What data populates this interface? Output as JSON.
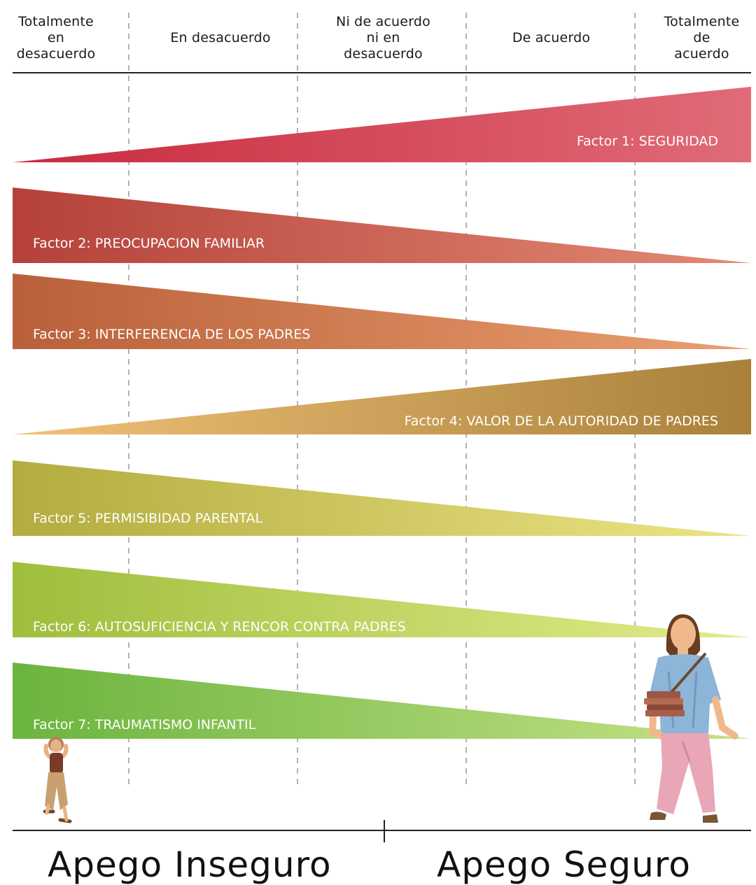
{
  "scale": {
    "headers": [
      [
        "Totalmente",
        "en",
        "desacuerdo"
      ],
      [
        "En desacuerdo"
      ],
      [
        "Ni de acuerdo",
        "ni en",
        "desacuerdo"
      ],
      [
        "De acuerdo"
      ],
      [
        "Totalmente",
        "de",
        "acuerdo"
      ]
    ]
  },
  "factors": [
    {
      "label": "Factor 1: SEGURIDAD",
      "direction": "rising",
      "color_start": "#c92b3e",
      "color_end": "#e06b78"
    },
    {
      "label": "Factor 2: PREOCUPACION FAMILIAR",
      "direction": "falling",
      "color_start": "#b5413a",
      "color_end": "#e28a74"
    },
    {
      "label": "Factor 3: INTERFERENCIA  DE LOS PADRES",
      "direction": "falling",
      "color_start": "#b9603a",
      "color_end": "#eaa070"
    },
    {
      "label": "Factor 4: VALOR DE LA AUTORIDAD DE PADRES",
      "direction": "rising",
      "color_start": "#f0c178",
      "color_end": "#a9813a"
    },
    {
      "label": "Factor 5: PERMISIBIDAD PARENTAL",
      "direction": "falling",
      "color_start": "#b3ac3f",
      "color_end": "#ece586"
    },
    {
      "label": "Factor 6: AUTOSUFICIENCIA Y RENCOR CONTRA PADRES",
      "direction": "falling",
      "color_start": "#9fbe3c",
      "color_end": "#e3ec8c"
    },
    {
      "label": "Factor 7: TRAUMATISMO INFANTIL",
      "direction": "falling",
      "color_start": "#6bb43f",
      "color_end": "#c7e288"
    }
  ],
  "footer": {
    "left": "Apego Inseguro",
    "right": "Apego Seguro"
  },
  "colors": {
    "guide_line": "#b3b3b3",
    "axis_line": "#222222"
  },
  "figures": [
    {
      "name": "insecure-person-figure",
      "shirt": "#7a3a2a",
      "pants": "#c8a070",
      "skin": "#e6b286",
      "hair": "#b58055"
    },
    {
      "name": "secure-person-figure",
      "shirt": "#8db5d8",
      "pants": "#e8a6b6",
      "skin": "#f0b98c",
      "hair": "#6a3d1e",
      "books": "#9b5844"
    }
  ]
}
